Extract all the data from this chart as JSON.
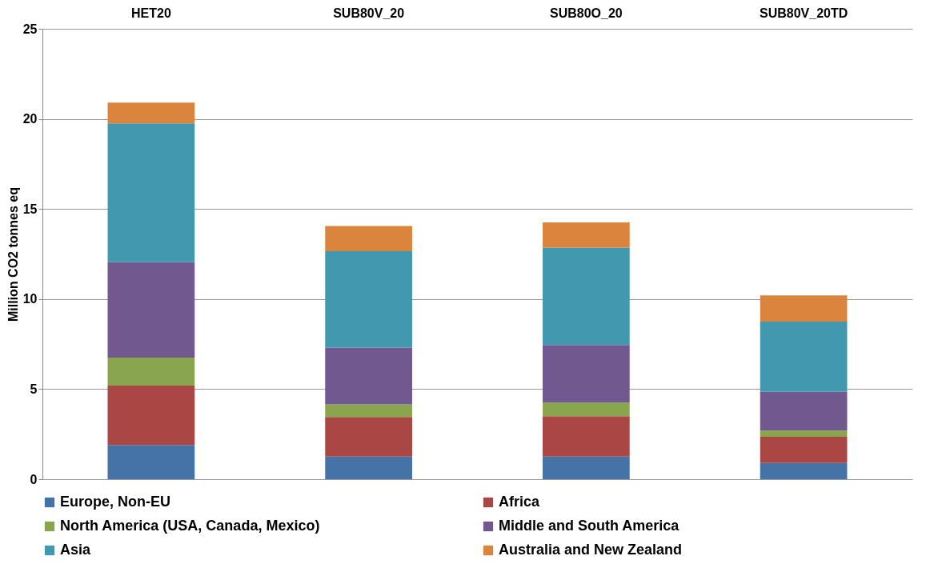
{
  "chart_data": {
    "type": "bar",
    "stacked": true,
    "ylabel": "Million CO2 tonnes eq",
    "categories": [
      "HET20",
      "SUB80V_20",
      "SUB80O_20",
      "SUB80V_20TD"
    ],
    "series": [
      {
        "name": "Europe, Non-EU",
        "color": "#4572a7",
        "values": [
          1.9,
          1.25,
          1.25,
          0.9
        ]
      },
      {
        "name": "Africa",
        "color": "#aa4643",
        "values": [
          3.3,
          2.2,
          2.25,
          1.45
        ]
      },
      {
        "name": "North America (USA, Canada, Mexico)",
        "color": "#89a54e",
        "values": [
          1.55,
          0.7,
          0.75,
          0.35
        ]
      },
      {
        "name": "Middle and South America",
        "color": "#71588f",
        "values": [
          5.3,
          3.15,
          3.2,
          2.15
        ]
      },
      {
        "name": "Asia",
        "color": "#4198af",
        "values": [
          7.7,
          5.35,
          5.4,
          3.9
        ]
      },
      {
        "name": "Australia and New Zealand",
        "color": "#db843d",
        "values": [
          1.15,
          1.4,
          1.4,
          1.45
        ]
      }
    ],
    "ylim": [
      0,
      25
    ],
    "yticks": [
      0,
      5,
      10,
      15,
      20,
      25
    ],
    "grid": "y",
    "legend": "bottom"
  }
}
